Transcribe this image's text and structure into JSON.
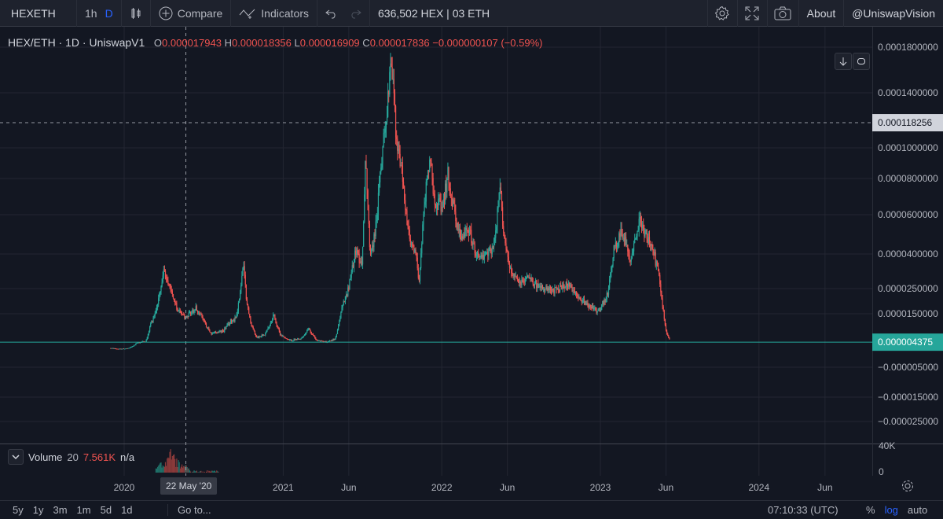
{
  "toolbar": {
    "symbol": "HEXETH",
    "intervals": [
      "1h",
      "D"
    ],
    "compare_label": "Compare",
    "indicators_label": "Indicators",
    "position_text": "636,502 HEX | 03 ETH",
    "about_label": "About",
    "account_label": "@UniswapVision"
  },
  "legend": {
    "symbol": "HEX/ETH · 1D · UniswapV1",
    "open_label": "O",
    "open": "0.000017943",
    "high_label": "H",
    "high": "0.000018356",
    "low_label": "L",
    "low": "0.000016909",
    "close_label": "C",
    "close": "0.000017836",
    "change": "−0.000000107 (−0.59%)"
  },
  "volume_legend": {
    "label": "Volume",
    "length": "20",
    "value": "7.561K",
    "extra": "n/a"
  },
  "bottom_bar": {
    "ranges": [
      "5y",
      "1y",
      "3m",
      "1m",
      "5d",
      "1d"
    ],
    "goto": "Go to...",
    "time": "07:10:33 (UTC)",
    "percent": "%",
    "log": "log",
    "auto": "auto"
  },
  "colors": {
    "background": "#131722",
    "grid": "#232632",
    "text": "#b2b5be",
    "up": "#26a69a",
    "down": "#ef5350",
    "last_price_tag": "#26a69a",
    "crosshair_tag": "#d1d4dc"
  },
  "chart_data": {
    "type": "line",
    "title": "HEX/ETH · 1D · UniswapV1",
    "y_axis_labels": [
      "0.0001800000",
      "0.0001400000",
      "0.0001000000",
      "0.0000800000",
      "0.0000600000",
      "0.0000400000",
      "0.0000250000",
      "0.0000150000",
      "−0.000005000",
      "−0.000015000",
      "−0.000025000"
    ],
    "x_axis_labels": [
      "2020",
      "2021",
      "Jun",
      "2022",
      "Jun",
      "2023",
      "Jun",
      "2024",
      "Jun"
    ],
    "crosshair_date": "22 May '20",
    "crosshair_price": "0.000118256",
    "last_price": "0.000004375",
    "volume_axis_labels": [
      "40K",
      "0"
    ],
    "series": [
      {
        "values": [
          {
            "x": "2019-12-01",
            "y": 2.1e-06
          },
          {
            "x": "2019-12-20",
            "y": 1.8e-06
          },
          {
            "x": "2020-01-10",
            "y": 2e-06
          },
          {
            "x": "2020-02-01",
            "y": 4.2e-06
          },
          {
            "x": "2020-02-20",
            "y": 4.7e-06
          },
          {
            "x": "2020-03-01",
            "y": 1.1e-05
          },
          {
            "x": "2020-03-15",
            "y": 1.7e-05
          },
          {
            "x": "2020-04-01",
            "y": 3.2e-05
          },
          {
            "x": "2020-04-15",
            "y": 2.7e-05
          },
          {
            "x": "2020-05-01",
            "y": 1.7e-05
          },
          {
            "x": "2020-05-22",
            "y": 1.4e-05
          },
          {
            "x": "2020-06-15",
            "y": 1.7e-05
          },
          {
            "x": "2020-07-01",
            "y": 1.3e-05
          },
          {
            "x": "2020-07-20",
            "y": 7.5e-06
          },
          {
            "x": "2020-08-15",
            "y": 8.5e-06
          },
          {
            "x": "2020-09-01",
            "y": 1.2e-05
          },
          {
            "x": "2020-09-15",
            "y": 1.4e-05
          },
          {
            "x": "2020-10-01",
            "y": 3.6e-05
          },
          {
            "x": "2020-10-15",
            "y": 1.4e-05
          },
          {
            "x": "2020-11-01",
            "y": 6.2e-06
          },
          {
            "x": "2020-11-20",
            "y": 7.5e-06
          },
          {
            "x": "2020-12-10",
            "y": 1.5e-05
          },
          {
            "x": "2020-12-25",
            "y": 7.5e-06
          },
          {
            "x": "2021-01-15",
            "y": 5e-06
          },
          {
            "x": "2021-02-10",
            "y": 5.5e-06
          },
          {
            "x": "2021-03-01",
            "y": 9.5e-06
          },
          {
            "x": "2021-03-20",
            "y": 5e-06
          },
          {
            "x": "2021-04-10",
            "y": 4.5e-06
          },
          {
            "x": "2021-04-30",
            "y": 5.5e-06
          },
          {
            "x": "2021-05-15",
            "y": 1.7e-05
          },
          {
            "x": "2021-06-01",
            "y": 2.6e-05
          },
          {
            "x": "2021-06-15",
            "y": 4.2e-05
          },
          {
            "x": "2021-07-01",
            "y": 3.6e-05
          },
          {
            "x": "2021-07-10",
            "y": 9.8e-05
          },
          {
            "x": "2021-07-20",
            "y": 4e-05
          },
          {
            "x": "2021-08-01",
            "y": 5.2e-05
          },
          {
            "x": "2021-08-10",
            "y": 7.5e-05
          },
          {
            "x": "2021-08-20",
            "y": 0.00011
          },
          {
            "x": "2021-08-28",
            "y": 0.000125
          },
          {
            "x": "2021-09-05",
            "y": 0.000175
          },
          {
            "x": "2021-09-12",
            "y": 0.000145
          },
          {
            "x": "2021-09-20",
            "y": 0.0001
          },
          {
            "x": "2021-10-01",
            "y": 8.5e-05
          },
          {
            "x": "2021-10-10",
            "y": 6.2e-05
          },
          {
            "x": "2021-10-20",
            "y": 4.5e-05
          },
          {
            "x": "2021-11-01",
            "y": 4.1e-05
          },
          {
            "x": "2021-11-10",
            "y": 3e-05
          },
          {
            "x": "2021-11-20",
            "y": 6.2e-05
          },
          {
            "x": "2021-12-05",
            "y": 9.6e-05
          },
          {
            "x": "2021-12-15",
            "y": 7e-05
          },
          {
            "x": "2022-01-01",
            "y": 6.2e-05
          },
          {
            "x": "2022-01-15",
            "y": 8.2e-05
          },
          {
            "x": "2022-02-01",
            "y": 6e-05
          },
          {
            "x": "2022-02-15",
            "y": 4.6e-05
          },
          {
            "x": "2022-03-01",
            "y": 5.5e-05
          },
          {
            "x": "2022-03-20",
            "y": 4.1e-05
          },
          {
            "x": "2022-04-10",
            "y": 3.8e-05
          },
          {
            "x": "2022-05-01",
            "y": 4.5e-05
          },
          {
            "x": "2022-05-15",
            "y": 7.5e-05
          },
          {
            "x": "2022-05-25",
            "y": 4.8e-05
          },
          {
            "x": "2022-06-10",
            "y": 3.2e-05
          },
          {
            "x": "2022-07-01",
            "y": 2.7e-05
          },
          {
            "x": "2022-07-20",
            "y": 3.1e-05
          },
          {
            "x": "2022-08-15",
            "y": 2.5e-05
          },
          {
            "x": "2022-09-15",
            "y": 2.4e-05
          },
          {
            "x": "2022-10-15",
            "y": 2.7e-05
          },
          {
            "x": "2022-11-10",
            "y": 2.2e-05
          },
          {
            "x": "2022-12-01",
            "y": 1.9e-05
          },
          {
            "x": "2022-12-25",
            "y": 1.6e-05
          },
          {
            "x": "2023-01-15",
            "y": 2.1e-05
          },
          {
            "x": "2023-02-01",
            "y": 4.2e-05
          },
          {
            "x": "2023-02-20",
            "y": 5.2e-05
          },
          {
            "x": "2023-03-10",
            "y": 3.8e-05
          },
          {
            "x": "2023-04-01",
            "y": 5.8e-05
          },
          {
            "x": "2023-04-15",
            "y": 5e-05
          },
          {
            "x": "2023-05-01",
            "y": 4.2e-05
          },
          {
            "x": "2023-05-15",
            "y": 3.2e-05
          },
          {
            "x": "2023-05-25",
            "y": 1.8e-05
          },
          {
            "x": "2023-06-01",
            "y": 8.5e-06
          },
          {
            "x": "2023-06-10",
            "y": 5e-06
          }
        ]
      }
    ]
  }
}
